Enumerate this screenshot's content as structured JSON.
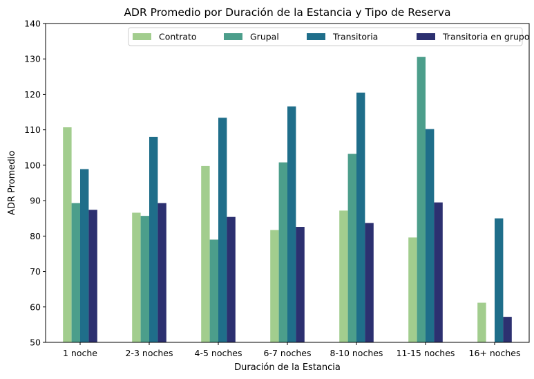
{
  "chart_data": {
    "type": "bar",
    "title": "ADR Promedio por Duración de la Estancia y Tipo de Reserva",
    "xlabel": "Duración de la Estancia",
    "ylabel": "ADR Promedio",
    "ylim": [
      50,
      140
    ],
    "yticks": [
      50,
      60,
      70,
      80,
      90,
      100,
      110,
      120,
      130,
      140
    ],
    "grid": false,
    "legend_position": "top-right",
    "categories": [
      "1 noche",
      "2-3 noches",
      "4-5 noches",
      "6-7 noches",
      "8-10 noches",
      "11-15 noches",
      "16+ noches"
    ],
    "series": [
      {
        "name": "Contrato",
        "color": "#a2cd8e",
        "values": [
          110.7,
          86.6,
          99.8,
          81.7,
          87.2,
          79.6,
          61.2
        ]
      },
      {
        "name": "Grupal",
        "color": "#4c9e8b",
        "values": [
          89.3,
          85.7,
          79.0,
          100.8,
          103.2,
          130.6,
          null
        ]
      },
      {
        "name": "Transitoria",
        "color": "#1f6e8a",
        "values": [
          98.9,
          108.0,
          113.4,
          116.6,
          120.5,
          110.2,
          85.0
        ]
      },
      {
        "name": "Transitoria en grupo",
        "color": "#2c3070",
        "values": [
          87.4,
          89.3,
          85.4,
          82.6,
          83.7,
          89.5,
          57.2
        ]
      }
    ]
  }
}
